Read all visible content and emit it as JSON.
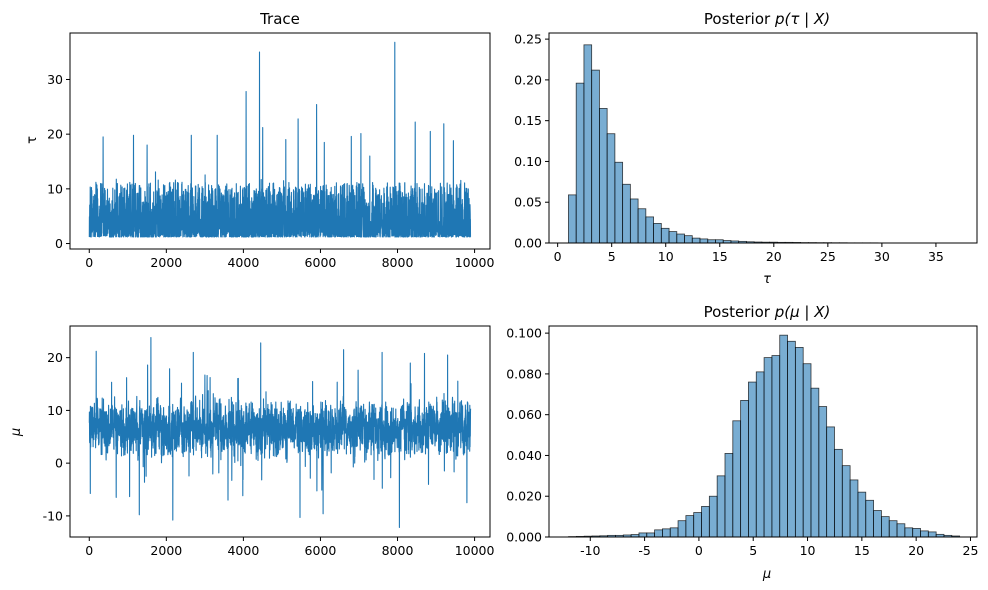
{
  "chart_data": [
    {
      "id": "trace_tau",
      "type": "line",
      "title": "Trace",
      "xlabel": "",
      "ylabel": "τ",
      "xlim": [
        -500,
        10400
      ],
      "ylim": [
        -1,
        38.5
      ],
      "xticks": [
        0,
        2000,
        4000,
        6000,
        8000,
        10000
      ],
      "yticks": [
        0,
        10,
        20,
        30
      ],
      "n_samples": 9900,
      "baseline_range": [
        1,
        12
      ],
      "spikes": [
        {
          "x": 4420,
          "y": 35.0
        },
        {
          "x": 7930,
          "y": 36.8
        },
        {
          "x": 4070,
          "y": 27.8
        },
        {
          "x": 5900,
          "y": 25.4
        },
        {
          "x": 5420,
          "y": 22.8
        },
        {
          "x": 8460,
          "y": 22.2
        },
        {
          "x": 9200,
          "y": 21.9
        },
        {
          "x": 4500,
          "y": 21.2
        },
        {
          "x": 8850,
          "y": 20.5
        },
        {
          "x": 7050,
          "y": 20.1
        },
        {
          "x": 2650,
          "y": 19.8
        },
        {
          "x": 3320,
          "y": 19.8
        },
        {
          "x": 1150,
          "y": 19.8
        },
        {
          "x": 6800,
          "y": 19.6
        },
        {
          "x": 360,
          "y": 19.5
        },
        {
          "x": 1500,
          "y": 18.0
        },
        {
          "x": 5100,
          "y": 19.0
        },
        {
          "x": 6100,
          "y": 18.5
        },
        {
          "x": 9450,
          "y": 18.8
        }
      ]
    },
    {
      "id": "posterior_tau",
      "type": "bar",
      "title_prefix": "Posterior ",
      "title_math": "p(τ | X)",
      "xlabel": "τ",
      "ylabel": "",
      "xlim": [
        -0.8,
        38.8
      ],
      "ylim": [
        0,
        0.2575
      ],
      "xticks": [
        0,
        5,
        10,
        15,
        20,
        25,
        30,
        35
      ],
      "yticks": [
        0.0,
        0.05,
        0.1,
        0.15,
        0.2,
        0.25
      ],
      "ytick_labels": [
        "0.00",
        "0.05",
        "0.10",
        "0.15",
        "0.20",
        "0.25"
      ],
      "bin_start": 1.0,
      "bin_width": 0.716,
      "values": [
        0.059,
        0.196,
        0.243,
        0.212,
        0.165,
        0.134,
        0.099,
        0.072,
        0.054,
        0.042,
        0.032,
        0.024,
        0.018,
        0.014,
        0.011,
        0.009,
        0.006,
        0.005,
        0.004,
        0.004,
        0.003,
        0.0025,
        0.002,
        0.0015,
        0.0012,
        0.001,
        0.001,
        0.0008,
        0.0008,
        0.0007,
        0.0005,
        0.0005,
        0.0004,
        0.0004,
        0.0003,
        0.0003,
        0.0002,
        0.0002,
        0.0002,
        0.0002,
        0.0001,
        0.0001,
        0.0001,
        0.0001,
        0.0001,
        0.0001,
        0.0001,
        0.0001,
        0.0001,
        0.0001
      ]
    },
    {
      "id": "trace_mu",
      "type": "line",
      "title": "",
      "xlabel": "",
      "ylabel": "μ",
      "xlim": [
        -500,
        10400
      ],
      "ylim": [
        -14,
        26
      ],
      "xticks": [
        0,
        2000,
        4000,
        6000,
        8000,
        10000
      ],
      "yticks": [
        -10,
        0,
        10,
        20
      ],
      "n_samples": 9900,
      "band_range": [
        -2,
        17
      ],
      "extremes": [
        {
          "x": 1600,
          "y": 23.8
        },
        {
          "x": 4450,
          "y": 22.8
        },
        {
          "x": 180,
          "y": 21.2
        },
        {
          "x": 6600,
          "y": 21.5
        },
        {
          "x": 2700,
          "y": 21.0
        },
        {
          "x": 7600,
          "y": 21.0
        },
        {
          "x": 8700,
          "y": 20.8
        },
        {
          "x": 9300,
          "y": 20.5
        },
        {
          "x": 8050,
          "y": -12.2
        },
        {
          "x": 2170,
          "y": -10.8
        },
        {
          "x": 5470,
          "y": -10.3
        },
        {
          "x": 1300,
          "y": -9.8
        },
        {
          "x": 6070,
          "y": -9.6
        },
        {
          "x": 9800,
          "y": -7.5
        },
        {
          "x": 3600,
          "y": -7.0
        },
        {
          "x": 700,
          "y": -6.5
        }
      ]
    },
    {
      "id": "posterior_mu",
      "type": "bar",
      "title_prefix": "Posterior ",
      "title_math": "p(μ | X)",
      "xlabel": "μ",
      "ylabel": "",
      "xlim": [
        -13.8,
        25.6
      ],
      "ylim": [
        0,
        0.1035
      ],
      "xticks": [
        -10,
        -5,
        0,
        5,
        10,
        15,
        20,
        25
      ],
      "yticks": [
        0.0,
        0.02,
        0.04,
        0.06,
        0.08,
        0.1
      ],
      "ytick_labels": [
        "0.000",
        "0.020",
        "0.040",
        "0.060",
        "0.080",
        "0.100"
      ],
      "bin_start": -12.0,
      "bin_width": 0.72,
      "values": [
        0.0002,
        0.0003,
        0.0004,
        0.0005,
        0.0006,
        0.0008,
        0.0008,
        0.001,
        0.0012,
        0.002,
        0.002,
        0.0035,
        0.004,
        0.0045,
        0.008,
        0.0105,
        0.012,
        0.015,
        0.02,
        0.03,
        0.041,
        0.057,
        0.067,
        0.076,
        0.081,
        0.088,
        0.089,
        0.099,
        0.096,
        0.093,
        0.085,
        0.073,
        0.064,
        0.054,
        0.043,
        0.035,
        0.028,
        0.022,
        0.018,
        0.013,
        0.01,
        0.008,
        0.0065,
        0.0045,
        0.0042,
        0.003,
        0.0025,
        0.0013,
        0.0008,
        0.0005
      ]
    }
  ]
}
